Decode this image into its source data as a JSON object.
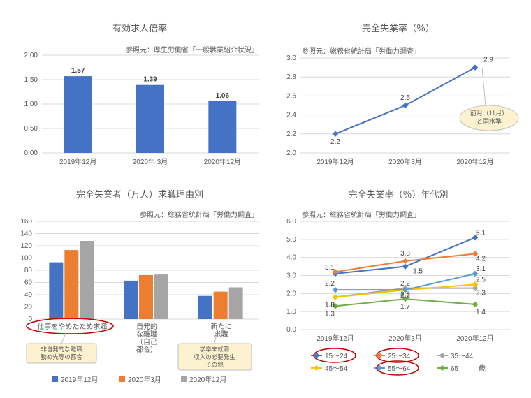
{
  "colors": {
    "blue": "#4472c4",
    "orange": "#ed7d31",
    "gray": "#a5a5a5",
    "yellow": "#ffc000",
    "lightblue": "#5b9bd5",
    "green": "#70ad47",
    "grid": "#d9d9d9",
    "text": "#595959",
    "redline": "#c00000",
    "note_bg": "#fdf2d0"
  },
  "top_left": {
    "title": "有効求人倍率",
    "source": "参照元：厚生労働省「一般職業紹介状況」",
    "categories": [
      "2019年12月",
      "2020年 3月",
      "2020年12月"
    ],
    "values": [
      1.57,
      1.39,
      1.06
    ],
    "ylim": [
      0,
      2.0
    ],
    "ytick": 0.5,
    "bar_color": "#4472c4"
  },
  "top_right": {
    "title": "完全失業率（％）",
    "source": "参照元：総務省統計局「労働力調査」",
    "categories": [
      "2019年12月",
      "2020年3月",
      "2020年12月"
    ],
    "values": [
      2.2,
      2.5,
      2.9
    ],
    "ylim": [
      2.0,
      3.0
    ],
    "ytick": 0.2,
    "line_color": "#4472c4",
    "note": "前月（11月）\nと同水準"
  },
  "bottom_left": {
    "title": "完全失業者（万人）求職理由別",
    "source": "参照元：総務省統計局「労働力調査」",
    "categories": [
      "仕事をやめたため求職",
      "自発的\nな離職\n（自己\n都合）",
      "新たに\n求職"
    ],
    "series": [
      {
        "name": "2019年12月",
        "color": "#4472c4",
        "values": [
          93,
          63,
          38
        ]
      },
      {
        "name": "2020年3月",
        "color": "#ed7d31",
        "values": [
          113,
          72,
          45
        ]
      },
      {
        "name": "2020年12月",
        "color": "#a5a5a5",
        "values": [
          128,
          73,
          52
        ]
      }
    ],
    "ylim": [
      0,
      160
    ],
    "ytick": 20,
    "note1": "非自発的な離職\n勤め先等の都合",
    "note2": "学卒未就職\n収入の必要発生\nその他"
  },
  "bottom_right": {
    "title": "完全失業率（％）年代別",
    "source": "参照元：総務省統計局「労働力調査」",
    "categories": [
      "2019年12月",
      "2020年3月",
      "2020年12月"
    ],
    "series": [
      {
        "name": "15～24",
        "color": "#4472c4",
        "values": [
          3.1,
          3.5,
          5.1
        ]
      },
      {
        "name": "25～34",
        "color": "#ed7d31",
        "values": [
          3.2,
          3.8,
          4.2
        ]
      },
      {
        "name": "35～44",
        "color": "#a5a5a5",
        "values": [
          1.8,
          2.3,
          2.3
        ]
      },
      {
        "name": "45～54",
        "color": "#ffc000",
        "values": [
          1.8,
          2.2,
          2.5
        ]
      },
      {
        "name": "55～64",
        "color": "#5b9bd5",
        "values": [
          2.2,
          2.2,
          3.1
        ]
      },
      {
        "name": "65",
        "color": "#70ad47",
        "values": [
          1.3,
          1.7,
          1.4
        ]
      }
    ],
    "ylim": [
      0,
      6
    ],
    "ytick": 1,
    "age_suffix": "歳"
  }
}
